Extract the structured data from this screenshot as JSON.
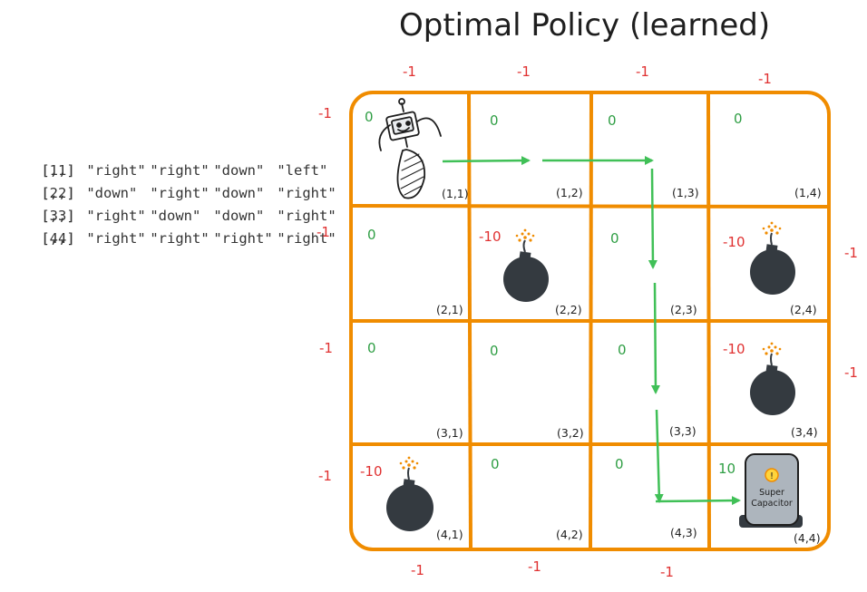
{
  "title": "Optimal Policy (learned)",
  "policy_matrix": {
    "col_headers": [
      "[,1]",
      "[,2]",
      "[,3]",
      "[,4]"
    ],
    "rows": [
      {
        "label": "[1,]",
        "values": [
          "\"right\"",
          "\"right\"",
          "\"down\"",
          "\"left\""
        ]
      },
      {
        "label": "[2,]",
        "values": [
          "\"down\"",
          "\"right\"",
          "\"down\"",
          "\"right\""
        ]
      },
      {
        "label": "[3,]",
        "values": [
          "\"right\"",
          "\"down\"",
          "\"down\"",
          "\"right\""
        ]
      },
      {
        "label": "[4,]",
        "values": [
          "\"right\"",
          "\"right\"",
          "\"right\"",
          "\"right\""
        ]
      }
    ]
  },
  "grid": {
    "cells": [
      [
        {
          "coord": "(1,1)",
          "reward": "0",
          "item": "robot"
        },
        {
          "coord": "(1,2)",
          "reward": "0"
        },
        {
          "coord": "(1,3)",
          "reward": "0"
        },
        {
          "coord": "(1,4)",
          "reward": "0"
        }
      ],
      [
        {
          "coord": "(2,1)",
          "reward": "0"
        },
        {
          "coord": "(2,2)",
          "reward": "-10",
          "item": "bomb"
        },
        {
          "coord": "(2,3)",
          "reward": "0"
        },
        {
          "coord": "(2,4)",
          "reward": "-10",
          "item": "bomb"
        }
      ],
      [
        {
          "coord": "(3,1)",
          "reward": "0"
        },
        {
          "coord": "(3,2)",
          "reward": "0"
        },
        {
          "coord": "(3,3)",
          "reward": "0"
        },
        {
          "coord": "(3,4)",
          "reward": "-10",
          "item": "bomb"
        }
      ],
      [
        {
          "coord": "(4,1)",
          "reward": "-10",
          "item": "bomb"
        },
        {
          "coord": "(4,2)",
          "reward": "0"
        },
        {
          "coord": "(4,3)",
          "reward": "0"
        },
        {
          "coord": "(4,4)",
          "reward": "10",
          "item": "super-capacitor"
        }
      ]
    ],
    "top_wall_penalties": [
      "-1",
      "-1",
      "-1",
      "-1"
    ],
    "bottom_wall_penalties": [
      "-1",
      "-1",
      "-1"
    ],
    "left_wall_penalties": [
      "-1",
      "-1",
      "-1",
      "-1"
    ],
    "right_wall_penalties": [
      "-1",
      "-1"
    ],
    "capacitor_label_1": "Super",
    "capacitor_label_2": "Capacitor",
    "capacitor_symbol": "!"
  },
  "colors": {
    "grid": "#f08c00",
    "penalty": "#e03131",
    "zero": "#2f9e44",
    "arrow": "#40c057",
    "bomb": "#343a40",
    "capacitor": "#adb5bd"
  },
  "icons": [
    "robot-icon",
    "bomb-icon",
    "super-capacitor-icon",
    "policy-arrow"
  ]
}
